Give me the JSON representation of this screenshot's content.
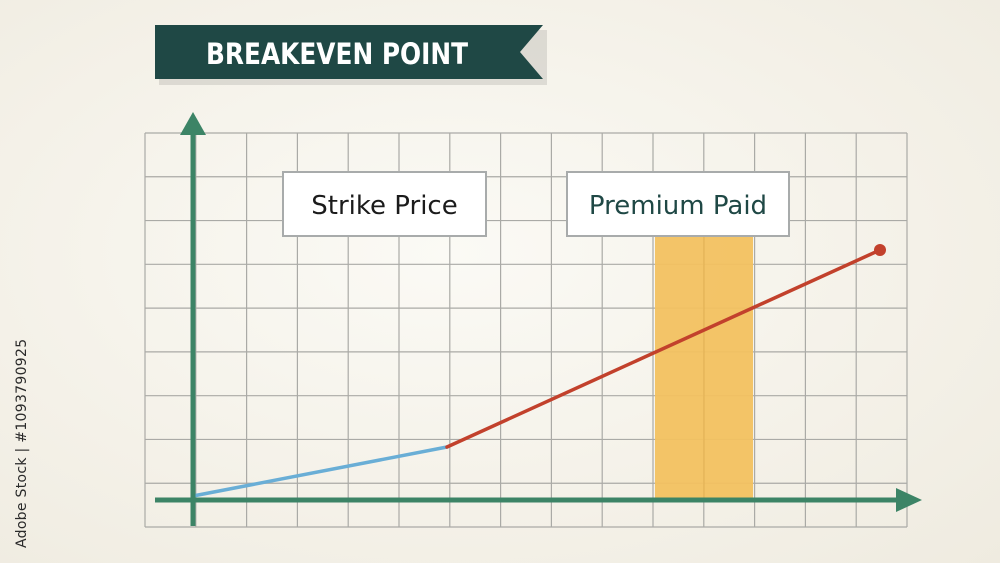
{
  "title": "BREAKEVEN POINT",
  "labels": {
    "strike_price": "Strike Price",
    "premium_paid": "Premium Paid"
  },
  "watermark": "Adobe Stock | #1093790925",
  "colors": {
    "banner": "#1f4845",
    "axis": "#3c8466",
    "grid": "#aaaaa6",
    "pre_strike_line": "#69aed6",
    "post_strike_line": "#c2412c",
    "premium_band": "#f2c160",
    "label_border": "#a8abab",
    "label_text": "#1b1b1b",
    "premium_text": "#1f4845"
  },
  "icons": [
    "y-axis-arrow-icon",
    "x-axis-arrow-icon",
    "endpoint-dot-icon",
    "banner-notch-icon"
  ]
}
